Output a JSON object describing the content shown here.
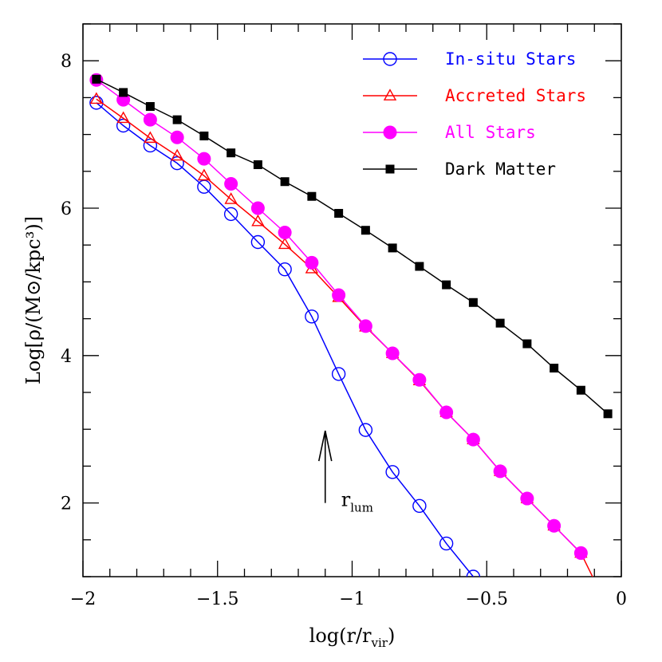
{
  "chart_data": {
    "type": "line",
    "title": "",
    "xlabel": "log(r/r_vir)",
    "ylabel": "Log[ρ/(M⊙/kpc³)]",
    "xlim": [
      -2.0,
      0.0
    ],
    "ylim": [
      1.0,
      8.5
    ],
    "x_ticks": [
      -2,
      -1.5,
      -1,
      -0.5,
      0
    ],
    "x_tick_labels": [
      "−2",
      "−1.5",
      "−1",
      "−0.5",
      "0"
    ],
    "y_ticks": [
      2,
      4,
      6,
      8
    ],
    "y_tick_labels": [
      "2",
      "4",
      "6",
      "8"
    ],
    "grid": false,
    "legend_position": "top-right",
    "series": [
      {
        "name": "In-situ Stars",
        "color": "#0000ff",
        "marker": "open-circle",
        "x": [
          -1.95,
          -1.85,
          -1.75,
          -1.65,
          -1.55,
          -1.45,
          -1.35,
          -1.25,
          -1.15,
          -1.05,
          -0.95,
          -0.85,
          -0.75,
          -0.65,
          -0.55,
          -0.52
        ],
        "y": [
          7.43,
          7.12,
          6.85,
          6.61,
          6.29,
          5.92,
          5.54,
          5.17,
          4.53,
          3.75,
          2.99,
          2.42,
          1.96,
          1.45,
          1.0,
          0.85
        ]
      },
      {
        "name": "Accreted Stars",
        "color": "#ff0000",
        "marker": "open-triangle",
        "x": [
          -1.95,
          -1.85,
          -1.75,
          -1.65,
          -1.55,
          -1.45,
          -1.35,
          -1.25,
          -1.15,
          -1.05,
          -0.95,
          -0.85,
          -0.75,
          -0.65,
          -0.55,
          -0.45,
          -0.35,
          -0.25,
          -0.15,
          -0.08
        ],
        "y": [
          7.48,
          7.22,
          6.95,
          6.71,
          6.44,
          6.12,
          5.82,
          5.51,
          5.18,
          4.79,
          4.39,
          4.03,
          3.66,
          3.23,
          2.86,
          2.43,
          2.06,
          1.69,
          1.32,
          0.8
        ]
      },
      {
        "name": "All Stars",
        "color": "#ff00ff",
        "marker": "filled-circle",
        "x": [
          -1.95,
          -1.85,
          -1.75,
          -1.65,
          -1.55,
          -1.45,
          -1.35,
          -1.25,
          -1.15,
          -1.05,
          -0.95,
          -0.85,
          -0.75,
          -0.65,
          -0.55,
          -0.45,
          -0.35,
          -0.25,
          -0.15
        ],
        "y": [
          7.74,
          7.47,
          7.2,
          6.96,
          6.67,
          6.33,
          6.0,
          5.67,
          5.26,
          4.82,
          4.4,
          4.03,
          3.67,
          3.23,
          2.86,
          2.43,
          2.06,
          1.69,
          1.32
        ]
      },
      {
        "name": "Dark Matter",
        "color": "#000000",
        "marker": "filled-square",
        "x": [
          -1.95,
          -1.85,
          -1.75,
          -1.65,
          -1.55,
          -1.45,
          -1.35,
          -1.25,
          -1.15,
          -1.05,
          -0.95,
          -0.85,
          -0.75,
          -0.65,
          -0.55,
          -0.45,
          -0.35,
          -0.25,
          -0.15,
          -0.05
        ],
        "y": [
          7.75,
          7.57,
          7.38,
          7.2,
          6.98,
          6.75,
          6.59,
          6.36,
          6.16,
          5.93,
          5.7,
          5.46,
          5.21,
          4.96,
          4.72,
          4.44,
          4.16,
          3.83,
          3.53,
          3.21
        ]
      }
    ],
    "annotations": [
      {
        "text": "r",
        "subscript": "lum",
        "arrow_x": -1.1,
        "arrow_y_from": 2.0,
        "arrow_y_to": 2.98
      }
    ]
  }
}
